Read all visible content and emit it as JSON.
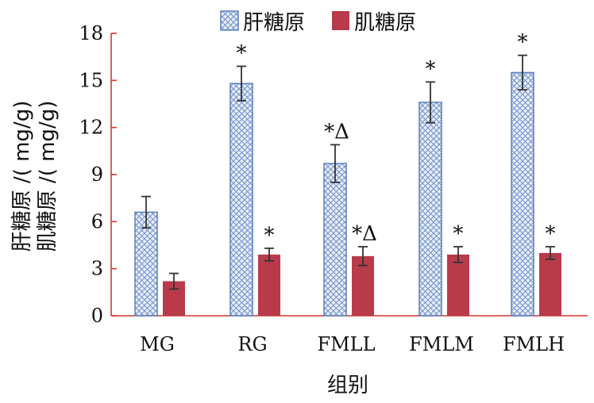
{
  "chart_data": {
    "type": "bar",
    "categories": [
      "MG",
      "RG",
      "FMLL",
      "FMLM",
      "FMLH"
    ],
    "series": [
      {
        "name": "肝糖原",
        "values": [
          6.6,
          14.8,
          9.7,
          13.6,
          15.5
        ],
        "errors": [
          1.0,
          1.1,
          1.2,
          1.3,
          1.1
        ],
        "annotations": [
          "",
          "*",
          "*Δ",
          "*",
          "*"
        ],
        "color": "#8ea8d8",
        "edge_color": "#5a7fc0"
      },
      {
        "name": "肌糖原",
        "values": [
          2.2,
          3.9,
          3.8,
          3.9,
          4.0
        ],
        "errors": [
          0.5,
          0.4,
          0.6,
          0.5,
          0.4
        ],
        "annotations": [
          "",
          "*",
          "*Δ",
          "*",
          "*"
        ],
        "color": "#b83a4b",
        "edge_color": "#b83a4b"
      }
    ],
    "xlabel": "组别",
    "ylabel_lines": [
      "肝糖原 /( mg/g)",
      "肌糖原 /( mg/g)"
    ],
    "yticks": [
      "0",
      "3",
      "6",
      "9",
      "12",
      "15",
      "18"
    ],
    "ylim": [
      0,
      18
    ],
    "legend_position": "top",
    "axis_color": "#d9362c",
    "grid": false
  }
}
